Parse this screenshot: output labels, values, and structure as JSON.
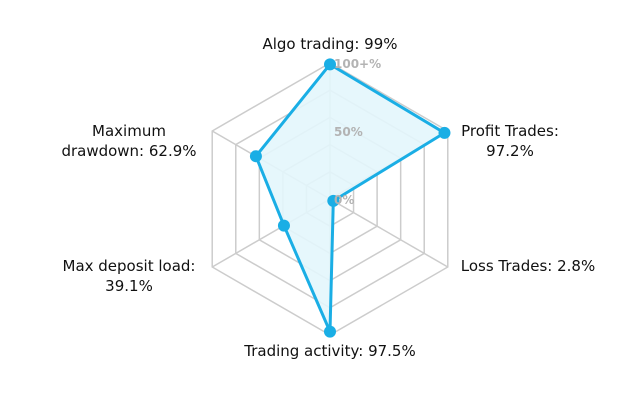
{
  "chart_data": {
    "type": "radar",
    "r_min": 0,
    "r_max": 100,
    "ticks": [
      {
        "value": 0,
        "label": "0%"
      },
      {
        "value": 50,
        "label": "50%"
      },
      {
        "value": 100,
        "label": "100+%"
      }
    ],
    "axes": [
      {
        "name": "Algo trading",
        "value": 99,
        "label_lines": [
          "Algo trading: 99%"
        ]
      },
      {
        "name": "Profit Trades",
        "value": 97.2,
        "label_lines": [
          "Profit Trades:",
          "97.2%"
        ]
      },
      {
        "name": "Loss Trades",
        "value": 2.8,
        "label_lines": [
          "Loss Trades: 2.8%"
        ]
      },
      {
        "name": "Trading activity",
        "value": 97.5,
        "label_lines": [
          "Trading activity: 97.5%"
        ]
      },
      {
        "name": "Max deposit load",
        "value": 39.1,
        "label_lines": [
          "Max deposit load:",
          "39.1%"
        ]
      },
      {
        "name": "Maximum drawdown",
        "value": 62.9,
        "label_lines": [
          "Maximum",
          "drawdown: 62.9%"
        ]
      }
    ],
    "colors": {
      "line": "#1aaee5",
      "fill": "#e3f6fc",
      "grid": "#cccccc",
      "tick_text": "#b3b3b3",
      "label_text": "#111111"
    }
  }
}
